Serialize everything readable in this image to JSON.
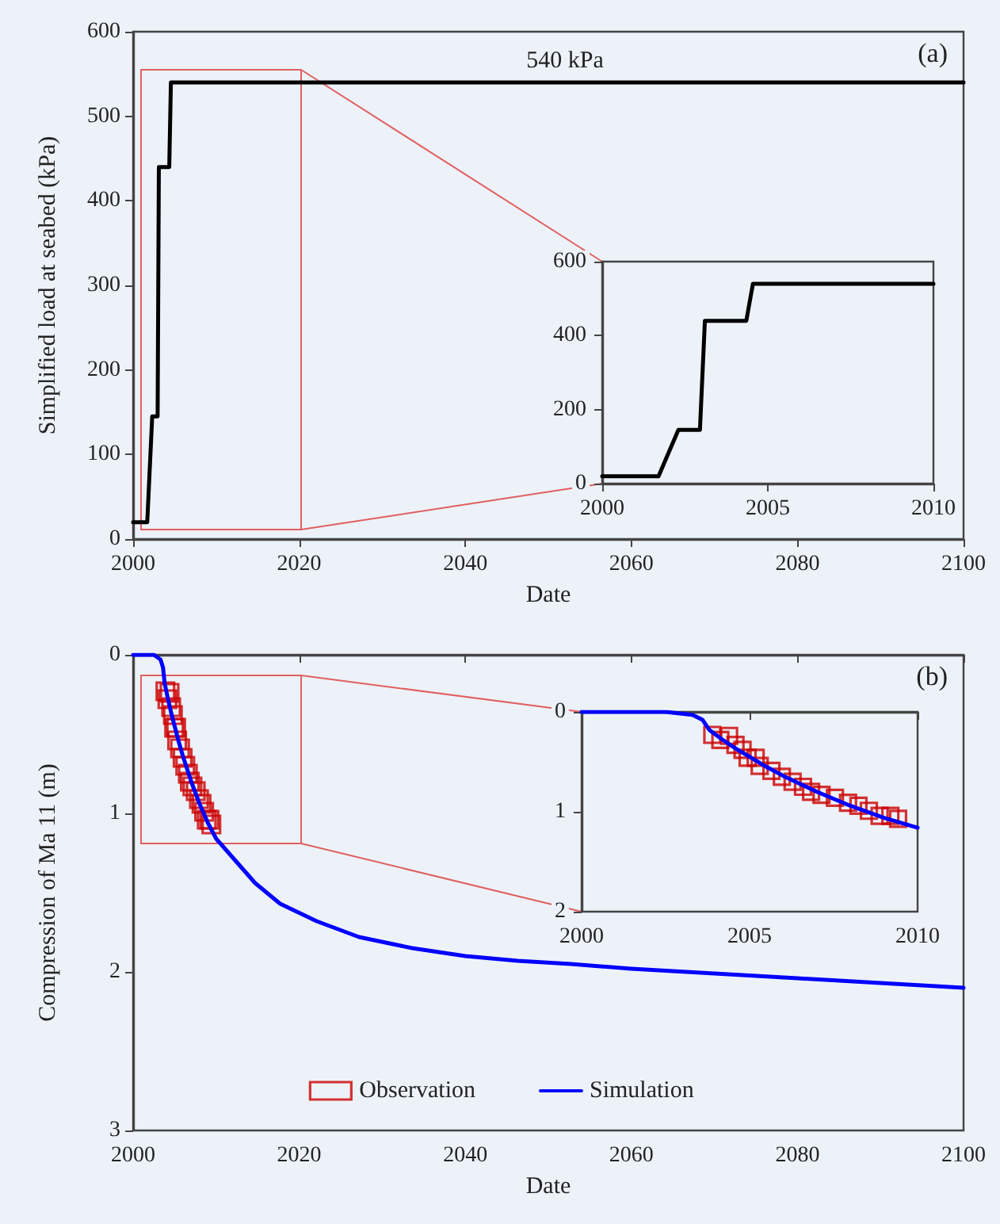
{
  "chart_data": [
    {
      "type": "line",
      "ylabel": "Simplified load at seabed (kPa)",
      "xlabel": "Date",
      "xlim": [
        2000,
        2100
      ],
      "xticks": [
        2000,
        2020,
        2040,
        2060,
        2080,
        2100
      ],
      "ylim": [
        0,
        600
      ],
      "yticks": [
        0,
        100,
        200,
        300,
        400,
        500,
        600
      ],
      "grid": false,
      "legend": false,
      "marker": "none",
      "line_style": "solid",
      "annotations": [
        {
          "text": "540 kPa",
          "x": 2052,
          "y": 540
        },
        "(a)"
      ],
      "series": [
        {
          "color": "#000000",
          "x": [
            2000,
            2001.7,
            2002.3,
            2002.95,
            2003.1,
            2004.35,
            2004.55,
            2100
          ],
          "values": [
            20,
            20,
            145,
            145,
            440,
            440,
            540,
            540
          ]
        }
      ]
    },
    {
      "type": "line",
      "xlim": [
        2000,
        2010
      ],
      "xticks": [
        2000,
        2005,
        2010
      ],
      "ylim": [
        0,
        600
      ],
      "yticks": [
        0,
        200,
        400,
        600
      ],
      "grid": false,
      "legend": false,
      "marker": "none",
      "line_style": "solid",
      "series": [
        {
          "color": "#000000",
          "x": [
            2000,
            2001.7,
            2002.3,
            2002.95,
            2003.1,
            2004.35,
            2004.55,
            2010
          ],
          "values": [
            20,
            20,
            145,
            145,
            440,
            440,
            540,
            540
          ]
        }
      ]
    },
    {
      "type": "line",
      "ylabel": "Compression of Ma 11 (m)",
      "xlabel": "Date",
      "xlim": [
        2000,
        2100
      ],
      "xticks": [
        2000,
        2020,
        2040,
        2060,
        2080,
        2100
      ],
      "ylim": [
        3,
        0
      ],
      "yticks": [
        0,
        1,
        2,
        3
      ],
      "grid": false,
      "legend": "bottom",
      "line_style": "solid",
      "annotations": [
        "(b)"
      ],
      "series": [
        {
          "name": "Observation",
          "type": "scatter",
          "marker": "square",
          "color": "#cc0000",
          "x": [
            2003.89,
            2004.13,
            2004.39,
            2004.58,
            2004.79,
            2004.94,
            2005.18,
            2005.3,
            2005.65,
            2005.96,
            2006.28,
            2006.59,
            2006.83,
            2007.14,
            2007.54,
            2007.93,
            2008.24,
            2008.55,
            2008.87,
            2009.19,
            2009.42
          ],
          "values": [
            0.23,
            0.28,
            0.24,
            0.33,
            0.38,
            0.46,
            0.46,
            0.54,
            0.59,
            0.65,
            0.7,
            0.75,
            0.8,
            0.83,
            0.86,
            0.91,
            0.94,
            0.99,
            1.04,
            1.04,
            1.07
          ]
        },
        {
          "name": "Simulation",
          "type": "line",
          "marker": "none",
          "color": "#0000ff",
          "x": [
            2000,
            2002.5,
            2003.3,
            2003.6,
            2003.8,
            2004.2,
            2004.6,
            2005,
            2005.5,
            2006,
            2007,
            2008,
            2009,
            2010,
            2014.7,
            2017.7,
            2022.1,
            2027.2,
            2033.6,
            2040,
            2046.3,
            2052.7,
            2060,
            2070,
            2080,
            2090,
            2100
          ],
          "values": [
            0,
            0,
            0.03,
            0.08,
            0.18,
            0.28,
            0.37,
            0.45,
            0.55,
            0.64,
            0.8,
            0.94,
            1.06,
            1.16,
            1.44,
            1.57,
            1.68,
            1.78,
            1.85,
            1.9,
            1.93,
            1.95,
            1.98,
            2.01,
            2.04,
            2.07,
            2.1
          ]
        }
      ]
    },
    {
      "type": "line",
      "xlim": [
        2000,
        2010
      ],
      "xticks": [
        2000,
        2005,
        2010
      ],
      "ylim": [
        2,
        0
      ],
      "yticks": [
        0,
        1,
        2
      ],
      "grid": false,
      "legend": false,
      "line_style": "solid",
      "series": [
        {
          "type": "scatter",
          "marker": "square",
          "color": "#cc0000",
          "x": [
            2003.89,
            2004.13,
            2004.39,
            2004.58,
            2004.79,
            2004.94,
            2005.18,
            2005.3,
            2005.65,
            2005.96,
            2006.28,
            2006.59,
            2006.83,
            2007.14,
            2007.54,
            2007.93,
            2008.24,
            2008.55,
            2008.87,
            2009.19,
            2009.42
          ],
          "values": [
            0.23,
            0.28,
            0.24,
            0.33,
            0.38,
            0.46,
            0.46,
            0.54,
            0.59,
            0.65,
            0.7,
            0.75,
            0.8,
            0.83,
            0.86,
            0.91,
            0.94,
            0.99,
            1.04,
            1.04,
            1.07
          ]
        },
        {
          "type": "line",
          "marker": "none",
          "color": "#0000ff",
          "x": [
            2000,
            2002.5,
            2003.3,
            2003.6,
            2003.8,
            2004.2,
            2004.6,
            2005,
            2005.5,
            2006,
            2007,
            2008,
            2009,
            2010
          ],
          "values": [
            0,
            0,
            0.03,
            0.08,
            0.18,
            0.28,
            0.37,
            0.45,
            0.55,
            0.64,
            0.8,
            0.94,
            1.06,
            1.16
          ]
        }
      ]
    }
  ]
}
